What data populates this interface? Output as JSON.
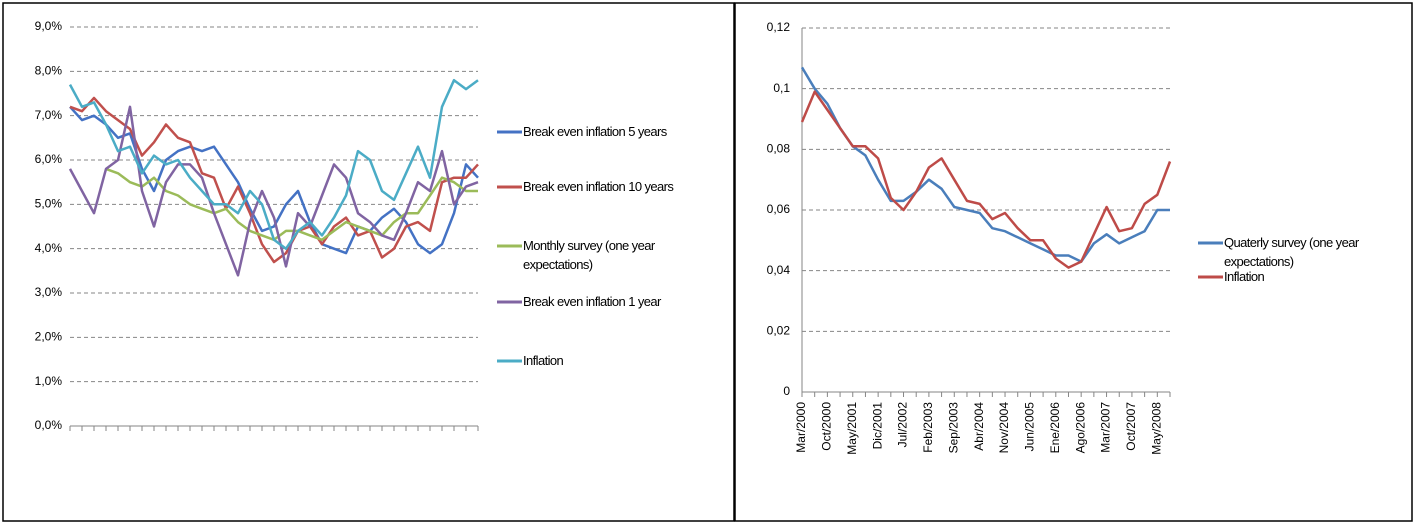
{
  "chart_data": [
    {
      "type": "line",
      "categories": [
        null,
        null,
        null,
        null,
        null,
        null,
        null,
        null,
        null,
        null,
        null,
        null,
        null,
        null,
        null,
        null,
        null,
        null,
        null,
        null,
        null,
        null,
        null,
        null,
        null,
        null,
        null,
        null,
        null,
        null,
        null,
        null,
        null,
        null,
        null
      ],
      "series": [
        {
          "name": "Break even inflation 5 years",
          "color": "#4472c4",
          "values": [
            7.2,
            6.9,
            7.0,
            6.8,
            6.5,
            6.6,
            5.8,
            5.3,
            6.0,
            6.2,
            6.3,
            6.2,
            6.3,
            5.9,
            5.5,
            4.9,
            4.4,
            4.5,
            5.0,
            5.3,
            4.6,
            4.1,
            4.0,
            3.9,
            4.5,
            4.4,
            4.7,
            4.9,
            4.6,
            4.1,
            3.9,
            4.1,
            4.8,
            5.9,
            5.6
          ]
        },
        {
          "name": "Break even inflation 10 years",
          "color": "#c0504d",
          "values": [
            7.2,
            7.1,
            7.4,
            7.1,
            6.9,
            6.7,
            6.1,
            6.4,
            6.8,
            6.5,
            6.4,
            5.7,
            5.6,
            4.9,
            5.4,
            4.8,
            4.1,
            3.7,
            3.9,
            4.4,
            4.5,
            4.1,
            4.5,
            4.7,
            4.3,
            4.4,
            3.8,
            4.0,
            4.5,
            4.6,
            4.4,
            5.5,
            5.6,
            5.6,
            5.9
          ]
        },
        {
          "name": "Monthly survey (one year expectations)",
          "color": "#9bbb59",
          "values": [
            null,
            null,
            null,
            5.8,
            5.7,
            5.5,
            5.4,
            5.6,
            5.3,
            5.2,
            5.0,
            4.9,
            4.8,
            4.9,
            4.6,
            4.4,
            4.3,
            4.2,
            4.4,
            4.4,
            4.3,
            4.2,
            4.4,
            4.6,
            4.5,
            4.4,
            4.3,
            4.6,
            4.8,
            4.8,
            5.2,
            5.6,
            5.5,
            5.3,
            5.3
          ]
        },
        {
          "name": "Break even inflation 1 year",
          "color": "#8064a2",
          "values": [
            5.8,
            5.3,
            4.8,
            5.8,
            6.0,
            7.2,
            5.3,
            4.5,
            5.5,
            5.9,
            5.9,
            5.6,
            4.8,
            4.1,
            3.4,
            4.6,
            5.3,
            4.7,
            3.6,
            4.8,
            4.5,
            5.2,
            5.9,
            5.6,
            4.8,
            4.6,
            4.3,
            4.2,
            4.8,
            5.5,
            5.3,
            6.2,
            5.0,
            5.4,
            5.5
          ]
        },
        {
          "name": "Inflation",
          "color": "#4bacc6",
          "values": [
            7.7,
            7.2,
            7.3,
            6.8,
            6.2,
            6.3,
            5.7,
            6.1,
            5.9,
            6.0,
            5.6,
            5.3,
            5.0,
            5.0,
            4.8,
            5.3,
            5.0,
            4.2,
            4.0,
            4.4,
            4.6,
            4.3,
            4.7,
            5.2,
            6.2,
            6.0,
            5.3,
            5.1,
            5.7,
            6.3,
            5.6,
            7.2,
            7.8,
            7.6,
            7.8
          ]
        }
      ],
      "ylim": [
        0,
        9
      ],
      "yticks": [
        {
          "value": 0,
          "label": "0,0%"
        },
        {
          "value": 1,
          "label": "1,0%"
        },
        {
          "value": 2,
          "label": "2,0%"
        },
        {
          "value": 3,
          "label": "3,0%"
        },
        {
          "value": 4,
          "label": "4,0%"
        },
        {
          "value": 5,
          "label": "5,0%"
        },
        {
          "value": 6,
          "label": "6,0%"
        },
        {
          "value": 7,
          "label": "7,0%"
        },
        {
          "value": 8,
          "label": "8,0%"
        },
        {
          "value": 9,
          "label": "9,0%"
        }
      ],
      "grid": true,
      "legend": "right"
    },
    {
      "type": "line",
      "categories": [
        "Mar/2000",
        null,
        "Oct/2000",
        null,
        "May/2001",
        null,
        "Dic/2001",
        null,
        "Jul/2002",
        null,
        "Feb/2003",
        null,
        "Sep/2003",
        null,
        "Abr/2004",
        null,
        "Nov/2004",
        null,
        "Jun/2005",
        null,
        "Ene/2006",
        null,
        "Ago/2006",
        null,
        "Mar/2007",
        null,
        "Oct/2007",
        null,
        "May/2008",
        null
      ],
      "series": [
        {
          "name": "Quaterly survey (one year expectations)",
          "color": "#4a7ebb",
          "values": [
            0.107,
            0.1,
            0.095,
            0.087,
            0.081,
            0.078,
            0.07,
            0.063,
            0.063,
            0.066,
            0.07,
            0.067,
            0.061,
            0.06,
            0.059,
            0.054,
            0.053,
            0.051,
            0.049,
            0.047,
            0.045,
            0.045,
            0.043,
            0.049,
            0.052,
            0.049,
            0.051,
            0.053,
            0.06,
            0.06
          ]
        },
        {
          "name": "Inflation",
          "color": "#be4b48",
          "values": [
            0.089,
            0.099,
            0.093,
            0.087,
            0.081,
            0.081,
            0.077,
            0.064,
            0.06,
            0.066,
            0.074,
            0.077,
            0.07,
            0.063,
            0.062,
            0.057,
            0.059,
            0.054,
            0.05,
            0.05,
            0.044,
            0.041,
            0.043,
            0.052,
            0.061,
            0.053,
            0.054,
            0.062,
            0.065,
            0.076
          ]
        }
      ],
      "ylim": [
        0,
        0.12
      ],
      "yticks": [
        0,
        {
          "value": 0.02,
          "label": "0,02"
        },
        {
          "value": 0.04,
          "label": "0,04"
        },
        {
          "value": 0.06,
          "label": "0,06"
        },
        {
          "value": 0.08,
          "label": "0,08"
        },
        {
          "value": 0.1,
          "label": "0,1"
        },
        {
          "value": 0.12,
          "label": "0,12"
        }
      ],
      "grid": true,
      "legend": "right"
    }
  ]
}
